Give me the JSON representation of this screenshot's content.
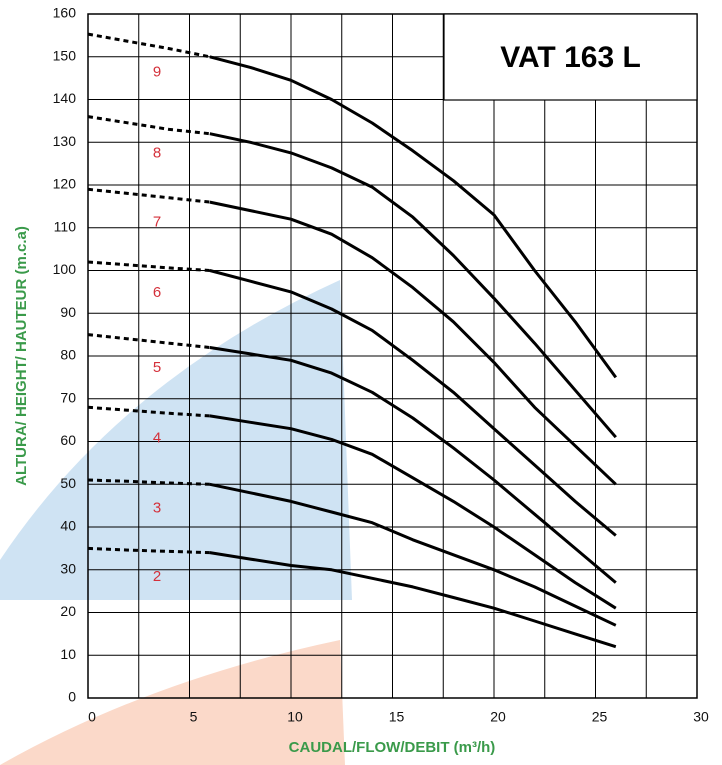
{
  "chart_data": {
    "type": "line",
    "title": "VAT 163 L",
    "x_label": "CAUDAL/FLOW/DEBIT (m³/h)",
    "y_label": "ALTURA/ HEIGHT/ HAUTEUR (m.c.a)",
    "x": [
      0,
      2,
      4,
      6,
      8,
      10,
      12,
      14,
      16,
      18,
      20,
      22,
      24,
      26
    ],
    "dashed_x_max": 6,
    "series": [
      {
        "name": "2",
        "color": "#000000",
        "values": [
          35,
          34.6,
          34.3,
          34,
          32.5,
          31,
          30,
          28,
          26,
          23.5,
          21,
          18,
          15,
          12
        ]
      },
      {
        "name": "3",
        "color": "#000000",
        "values": [
          51,
          50.7,
          50.3,
          50,
          48,
          46,
          43.5,
          41,
          37,
          33.5,
          30,
          26,
          21.5,
          17
        ]
      },
      {
        "name": "4",
        "color": "#000000",
        "values": [
          68,
          67.3,
          66.6,
          66,
          64.5,
          63,
          60.5,
          57,
          51.5,
          46,
          40,
          33.5,
          27,
          21
        ]
      },
      {
        "name": "5",
        "color": "#000000",
        "values": [
          85,
          84,
          83,
          82,
          80.5,
          79,
          76,
          71.5,
          65.5,
          58.5,
          51,
          43,
          35,
          27
        ]
      },
      {
        "name": "6",
        "color": "#000000",
        "values": [
          102,
          101.3,
          100.6,
          100,
          97.5,
          95,
          91,
          86,
          79,
          71.5,
          63,
          54.5,
          46,
          38
        ]
      },
      {
        "name": "7",
        "color": "#000000",
        "values": [
          119,
          118,
          117,
          116,
          114,
          112,
          108.5,
          103,
          96,
          88,
          78.5,
          68,
          59,
          50
        ]
      },
      {
        "name": "8",
        "color": "#000000",
        "values": [
          136,
          134.5,
          133,
          132,
          130,
          127.5,
          124,
          119.5,
          112.5,
          103.5,
          93.5,
          83,
          72,
          61
        ]
      },
      {
        "name": "9",
        "color": "#000000",
        "values": [
          155.3,
          153.6,
          151.9,
          150,
          147.5,
          144.5,
          140,
          134.5,
          128,
          121,
          113,
          100,
          88,
          75
        ]
      }
    ],
    "xlim": [
      0,
      30
    ],
    "ylim": [
      0,
      160
    ],
    "xticks": [
      0,
      5,
      10,
      15,
      20,
      25,
      30
    ],
    "xminorticks": [
      2.5,
      7.5,
      12.5,
      17.5,
      22.5,
      27.5
    ],
    "yticks": [
      0,
      10,
      20,
      30,
      40,
      50,
      60,
      70,
      80,
      90,
      100,
      110,
      120,
      130,
      140,
      150,
      160
    ],
    "grid": true,
    "label_color": "#d4303a",
    "axis_label_color": "#3a9a4a"
  }
}
